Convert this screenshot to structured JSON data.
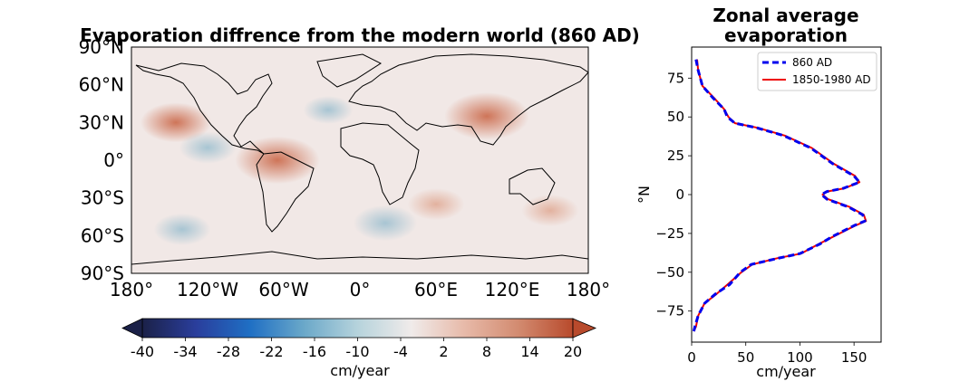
{
  "map_panel": {
    "title": "Evaporation diffrence from the modern world (860 AD)",
    "lat_ticks": [
      "90°N",
      "60°N",
      "30°N",
      "0°",
      "30°S",
      "60°S",
      "90°S"
    ],
    "lon_ticks": [
      "180°",
      "120°W",
      "60°W",
      "0°",
      "60°E",
      "120°E",
      "180°"
    ]
  },
  "colorbar": {
    "label": "cm/year",
    "ticks": [
      "-40",
      "-34",
      "-28",
      "-22",
      "-16",
      "-10",
      "-4",
      "2",
      "8",
      "14",
      "20"
    ],
    "range": [
      -40,
      20
    ],
    "extend": "both",
    "colors": [
      "#1b2148",
      "#2a3e9c",
      "#1f6fc4",
      "#6aa8c9",
      "#b6d3dc",
      "#f0ebea",
      "#e7b9a8",
      "#d28a6f",
      "#b84a2c"
    ]
  },
  "chart_data": [
    {
      "type": "heatmap",
      "title": "Evaporation diffrence from the modern world (860 AD)",
      "projection": "plate-carree",
      "xlim": [
        -180,
        180
      ],
      "ylim": [
        -90,
        90
      ],
      "units": "cm/year",
      "color_range": [
        -40,
        20
      ],
      "anomalies": [
        {
          "lon": -145,
          "lat": 30,
          "value": 12
        },
        {
          "lon": -65,
          "lat": 0,
          "value": 16
        },
        {
          "lon": -120,
          "lat": 10,
          "value": -8
        },
        {
          "lon": -25,
          "lat": 40,
          "value": -6
        },
        {
          "lon": 60,
          "lat": -35,
          "value": 8
        },
        {
          "lon": 100,
          "lat": 35,
          "value": 16
        },
        {
          "lon": 20,
          "lat": -50,
          "value": -10
        },
        {
          "lon": -140,
          "lat": -55,
          "value": -8
        },
        {
          "lon": 150,
          "lat": -40,
          "value": 8
        }
      ]
    },
    {
      "type": "line",
      "title": "Zonal average\nevaporation",
      "xlabel": "cm/year",
      "ylabel": "°N",
      "xlim": [
        0,
        175
      ],
      "ylim": [
        -95,
        95
      ],
      "x_ticks": [
        0,
        50,
        100,
        150
      ],
      "y_ticks": [
        75,
        50,
        25,
        0,
        -25,
        -50,
        -75
      ],
      "legend": "top-right",
      "series": [
        {
          "name": "860 AD",
          "color": "#0000ee",
          "style": "dashed",
          "points": [
            [
              4,
              87
            ],
            [
              6,
              80
            ],
            [
              10,
              70
            ],
            [
              20,
              62
            ],
            [
              30,
              55
            ],
            [
              33,
              50
            ],
            [
              40,
              46
            ],
            [
              60,
              43
            ],
            [
              85,
              38
            ],
            [
              110,
              30
            ],
            [
              130,
              20
            ],
            [
              150,
              12
            ],
            [
              155,
              8
            ],
            [
              140,
              4
            ],
            [
              125,
              2
            ],
            [
              120,
              0
            ],
            [
              125,
              -3
            ],
            [
              145,
              -8
            ],
            [
              158,
              -13
            ],
            [
              160,
              -17
            ],
            [
              150,
              -20
            ],
            [
              130,
              -27
            ],
            [
              118,
              -32
            ],
            [
              100,
              -38
            ],
            [
              80,
              -41
            ],
            [
              55,
              -45
            ],
            [
              45,
              -50
            ],
            [
              35,
              -58
            ],
            [
              22,
              -64
            ],
            [
              12,
              -70
            ],
            [
              6,
              -78
            ],
            [
              3,
              -85
            ],
            [
              2,
              -88
            ]
          ]
        },
        {
          "name": "1850-1980 AD",
          "color": "#ee0000",
          "style": "solid",
          "points": [
            [
              5,
              87
            ],
            [
              6,
              80
            ],
            [
              10,
              70
            ],
            [
              21,
              62
            ],
            [
              30,
              55
            ],
            [
              34,
              50
            ],
            [
              40,
              46
            ],
            [
              61,
              43
            ],
            [
              86,
              38
            ],
            [
              111,
              30
            ],
            [
              131,
              20
            ],
            [
              151,
              12
            ],
            [
              155,
              8
            ],
            [
              141,
              4
            ],
            [
              125,
              2
            ],
            [
              121,
              0
            ],
            [
              126,
              -3
            ],
            [
              146,
              -8
            ],
            [
              159,
              -13
            ],
            [
              161,
              -17
            ],
            [
              151,
              -20
            ],
            [
              131,
              -27
            ],
            [
              117,
              -32
            ],
            [
              101,
              -38
            ],
            [
              79,
              -41
            ],
            [
              56,
              -45
            ],
            [
              46,
              -50
            ],
            [
              33,
              -58
            ],
            [
              23,
              -64
            ],
            [
              12,
              -70
            ],
            [
              6,
              -78
            ],
            [
              4,
              -85
            ],
            [
              2,
              -88
            ]
          ]
        }
      ]
    }
  ]
}
